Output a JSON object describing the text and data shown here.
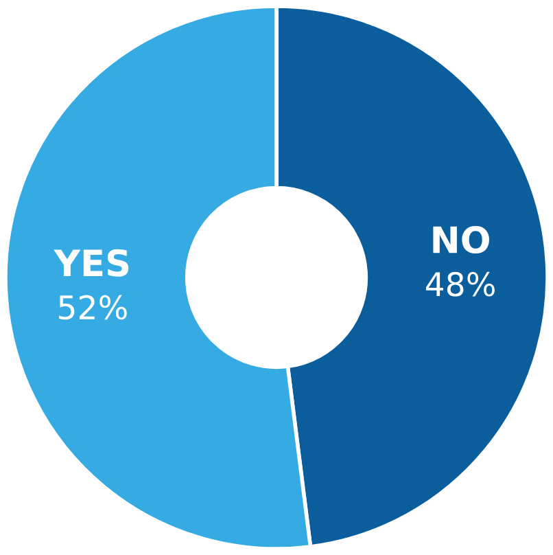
{
  "chart_data": {
    "type": "donut",
    "categories": [
      "NO",
      "YES"
    ],
    "values": [
      48,
      52
    ],
    "colors": [
      "#0b5d9c",
      "#36aae2"
    ],
    "value_labels": [
      "48%",
      "52%"
    ]
  }
}
